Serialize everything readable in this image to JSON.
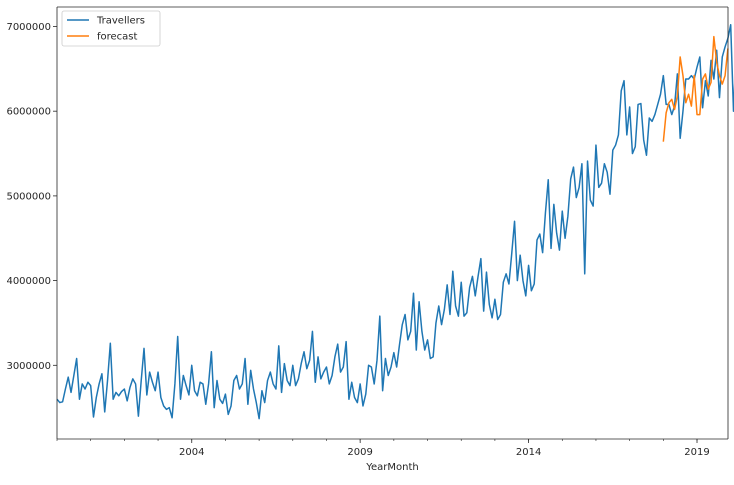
{
  "colors": {
    "series_1": "#1f77b4",
    "series_2": "#ff7f0e",
    "axes": "#262626",
    "legend_border": "#cccccc"
  },
  "chart_data": {
    "type": "line",
    "title": "",
    "xlabel": "YearMonth",
    "ylabel": "",
    "xlim": [
      2000.0,
      2019.92
    ],
    "ylim": [
      2130000,
      7230000
    ],
    "grid": false,
    "legend_position": "top-left",
    "x_ticks": [
      {
        "value": 2004,
        "label": "2004"
      },
      {
        "value": 2009,
        "label": "2009"
      },
      {
        "value": 2014,
        "label": "2014"
      },
      {
        "value": 2019,
        "label": "2019"
      }
    ],
    "y_ticks": [
      {
        "value": 3000000,
        "label": "3000000"
      },
      {
        "value": 4000000,
        "label": "4000000"
      },
      {
        "value": 5000000,
        "label": "5000000"
      },
      {
        "value": 6000000,
        "label": "6000000"
      },
      {
        "value": 7000000,
        "label": "7000000"
      }
    ],
    "series": [
      {
        "name": "Travellers",
        "start": "2000-01",
        "frequency": "monthly",
        "values": [
          2600000,
          2560000,
          2570000,
          2720000,
          2860000,
          2680000,
          2880000,
          3080000,
          2600000,
          2780000,
          2720000,
          2800000,
          2760000,
          2390000,
          2620000,
          2780000,
          2900000,
          2450000,
          2820000,
          3260000,
          2600000,
          2680000,
          2640000,
          2690000,
          2720000,
          2580000,
          2740000,
          2840000,
          2780000,
          2400000,
          2820000,
          3200000,
          2650000,
          2920000,
          2800000,
          2700000,
          2920000,
          2620000,
          2520000,
          2480000,
          2500000,
          2380000,
          2780000,
          3340000,
          2600000,
          2880000,
          2760000,
          2650000,
          3000000,
          2700000,
          2640000,
          2800000,
          2780000,
          2540000,
          2780000,
          3160000,
          2500000,
          2820000,
          2600000,
          2550000,
          2660000,
          2420000,
          2520000,
          2820000,
          2880000,
          2720000,
          2780000,
          3080000,
          2540000,
          2940000,
          2720000,
          2560000,
          2370000,
          2700000,
          2560000,
          2820000,
          2920000,
          2780000,
          2720000,
          3230000,
          2680000,
          3020000,
          2820000,
          2760000,
          3000000,
          2760000,
          2840000,
          3020000,
          3160000,
          2960000,
          3060000,
          3400000,
          2800000,
          3100000,
          2840000,
          2920000,
          2980000,
          2780000,
          2880000,
          3100000,
          3250000,
          2920000,
          2980000,
          3280000,
          2600000,
          2800000,
          2620000,
          2560000,
          2780000,
          2520000,
          2660000,
          3000000,
          2980000,
          2780000,
          3060000,
          3580000,
          2700000,
          3080000,
          2880000,
          2980000,
          3150000,
          2980000,
          3240000,
          3480000,
          3600000,
          3300000,
          3400000,
          3850000,
          3180000,
          3750000,
          3400000,
          3180000,
          3300000,
          3080000,
          3100000,
          3500000,
          3700000,
          3480000,
          3660000,
          3950000,
          3600000,
          4110000,
          3700000,
          3580000,
          3980000,
          3580000,
          3620000,
          3920000,
          4050000,
          3820000,
          4050000,
          4260000,
          3640000,
          4100000,
          3720000,
          3560000,
          3780000,
          3540000,
          3600000,
          3980000,
          4080000,
          3960000,
          4320000,
          4700000,
          4000000,
          4300000,
          4000000,
          3820000,
          4180000,
          3880000,
          3960000,
          4480000,
          4550000,
          4330000,
          4800000,
          5190000,
          4380000,
          4900000,
          4560000,
          4360000,
          4820000,
          4500000,
          4760000,
          5200000,
          5340000,
          4980000,
          5100000,
          5380000,
          4080000,
          5410000,
          4950000,
          4880000,
          5600000,
          5100000,
          5150000,
          5380000,
          5280000,
          5020000,
          5540000,
          5600000,
          5720000,
          6240000,
          6360000,
          5720000,
          6050000,
          5500000,
          5580000,
          6080000,
          6090000,
          5660000,
          5480000,
          5920000,
          5880000,
          5960000,
          6080000,
          6200000,
          6420000,
          6080000,
          6080000,
          5960000,
          6060000,
          6440000,
          5680000,
          6000000,
          6380000,
          6380000,
          6420000,
          6380000,
          6520000,
          6640000,
          6040000,
          6360000,
          6180000,
          6600000,
          6380000,
          6720000,
          6160000,
          6640000,
          6760000,
          6860000,
          7020000,
          6000000,
          6740000,
          6400000,
          6620000,
          6760000
        ]
      },
      {
        "name": "forecast",
        "start": "2018-01",
        "frequency": "monthly",
        "values": [
          5640000,
          5980000,
          6100000,
          6140000,
          6020000,
          6180000,
          6640000,
          6420000,
          6100000,
          6200000,
          6060000,
          6420000,
          5960000,
          5960000,
          6380000,
          6440000,
          6260000,
          6340000,
          6880000,
          6580000,
          6420000,
          6320000,
          6420000,
          6740000
        ]
      }
    ]
  }
}
